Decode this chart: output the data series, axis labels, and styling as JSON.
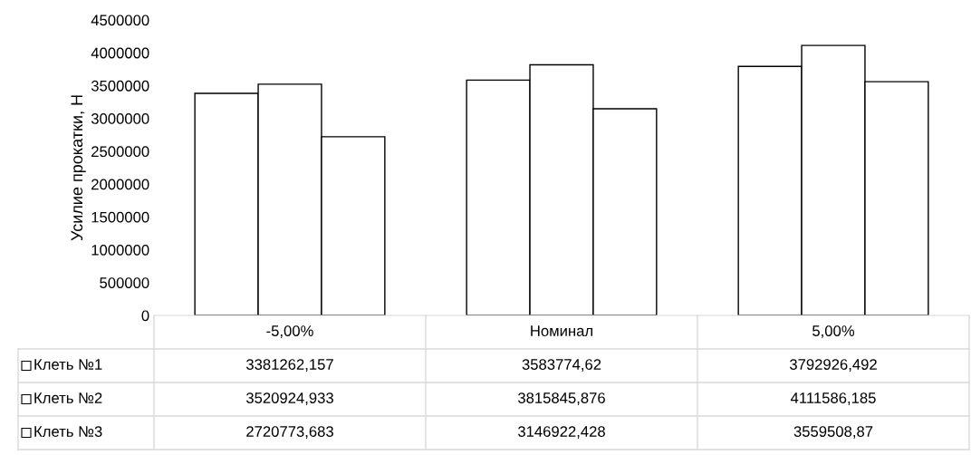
{
  "chart_data": {
    "type": "bar",
    "ylabel": "Усилие прокатки, Н",
    "categories": [
      "-5,00%",
      "Номинал",
      "5,00%"
    ],
    "series": [
      {
        "name": "Клеть №1",
        "color": "#ffffff",
        "values": [
          3381262.157,
          3583774.62,
          3792926.492
        ],
        "value_labels": [
          "3381262,157",
          "3583774,62",
          "3792926,492"
        ]
      },
      {
        "name": "Клеть №2",
        "color": "#ffffff",
        "values": [
          3520924.933,
          3815845.876,
          4111586.185
        ],
        "value_labels": [
          "3520924,933",
          "3815845,876",
          "4111586,185"
        ]
      },
      {
        "name": "Клеть №3",
        "color": "#ffffff",
        "values": [
          2720773.683,
          3146922.428,
          3559508.87
        ],
        "value_labels": [
          "2720773,683",
          "3146922,428",
          "3559508,87"
        ]
      }
    ],
    "ylim": [
      0,
      4500000
    ],
    "yticks": [
      0,
      500000,
      1000000,
      1500000,
      2000000,
      2500000,
      3000000,
      3500000,
      4000000,
      4500000
    ],
    "legend": "bottom"
  }
}
